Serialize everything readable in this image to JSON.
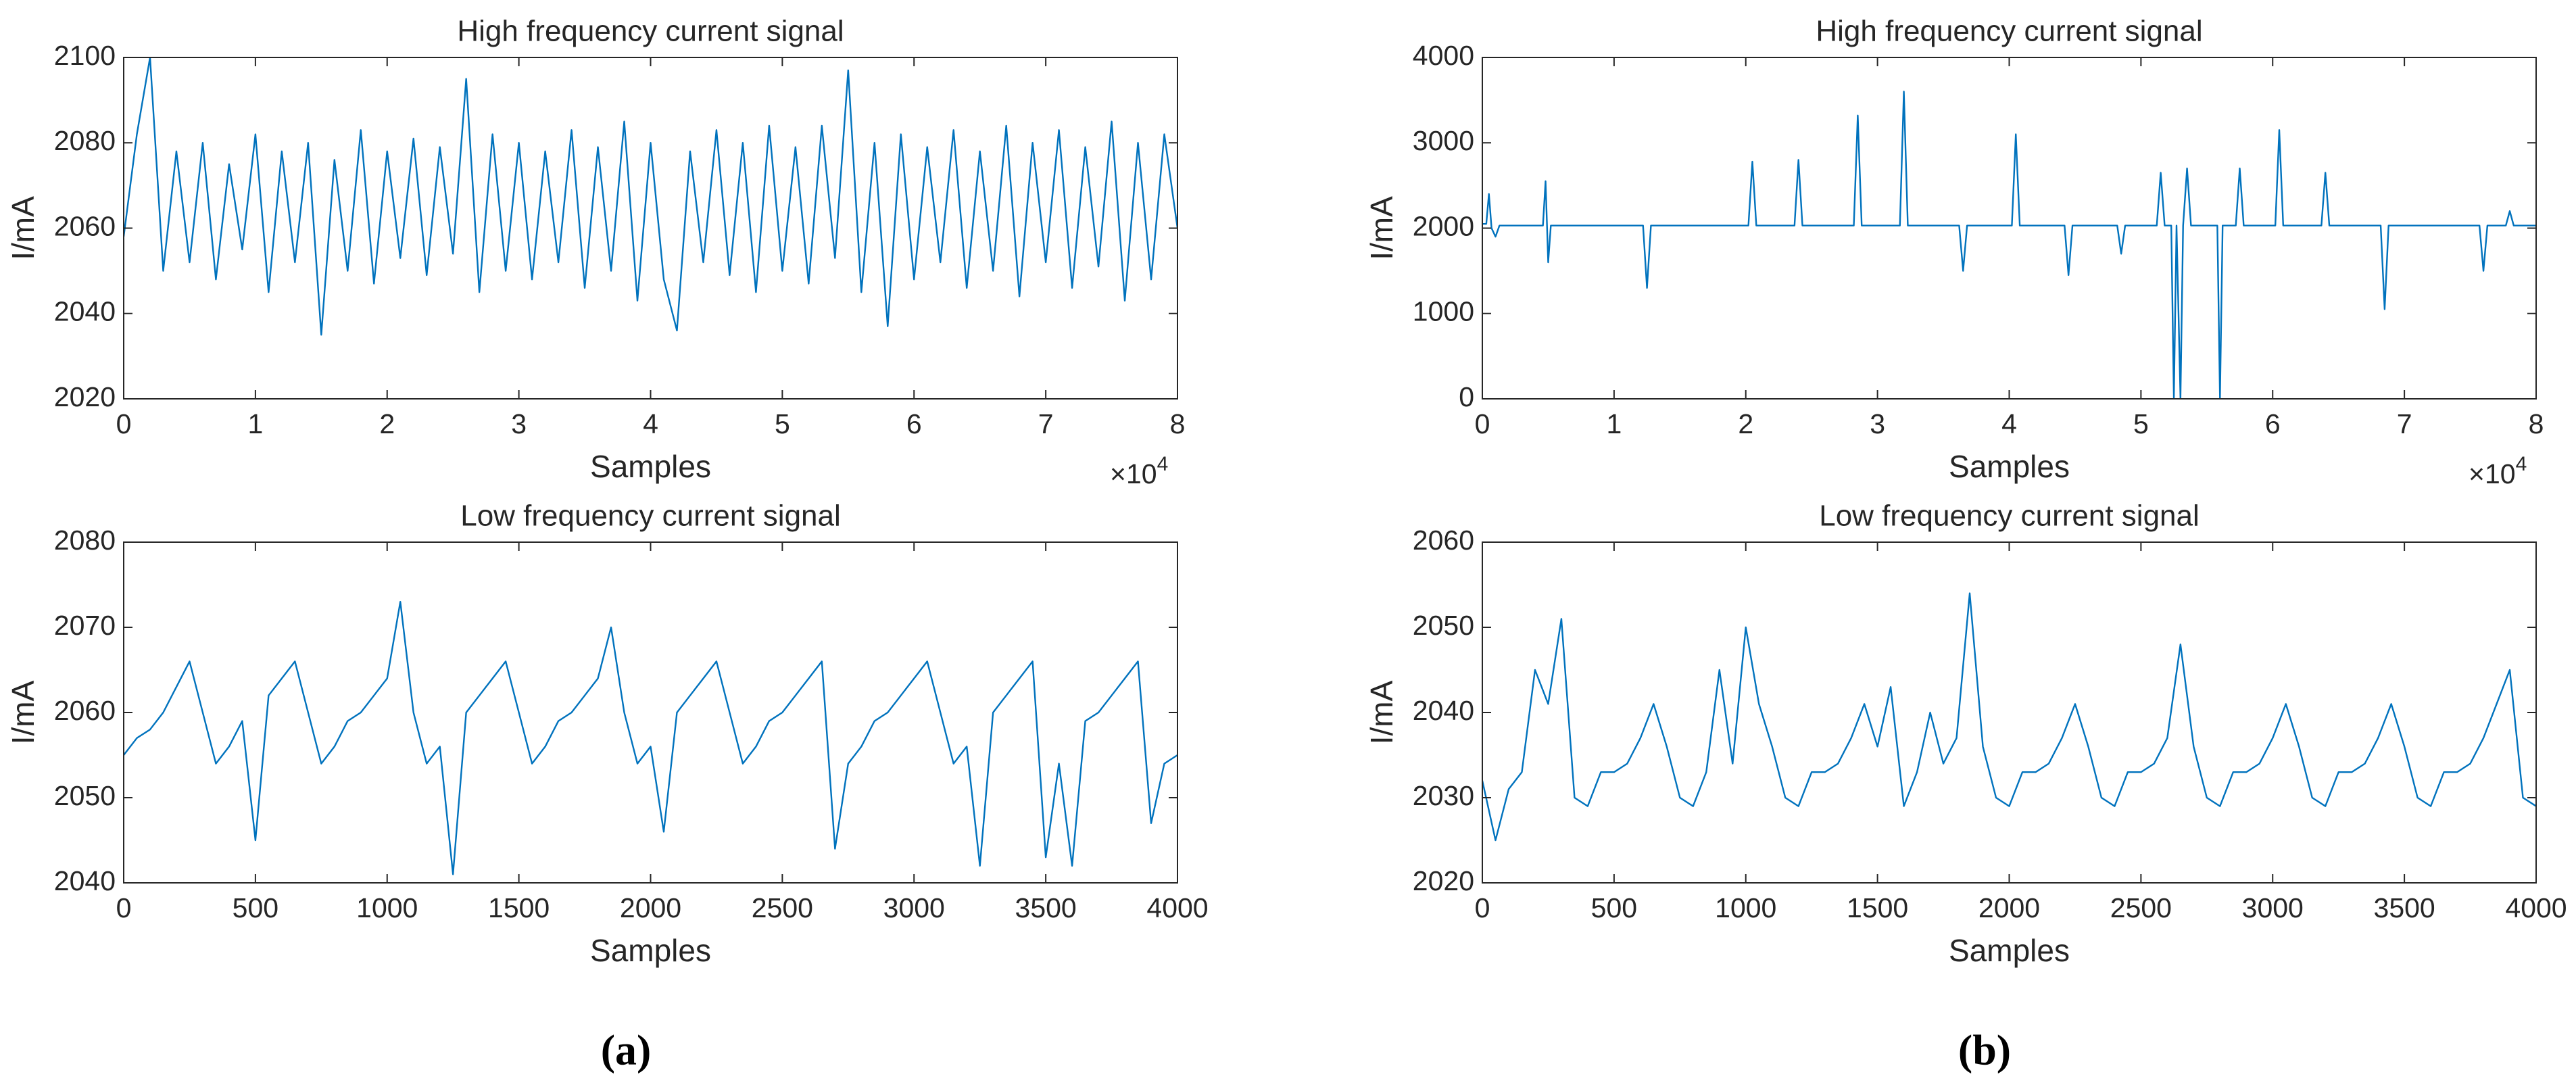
{
  "panels": [
    "(a)",
    "(b)"
  ],
  "chart_data": [
    {
      "type": "line",
      "title": "High frequency current signal",
      "x_label": "Samples",
      "y_label": "I/mA",
      "x_exponent_label": "×10",
      "x_exponent": "4",
      "xlim": [
        0,
        80000
      ],
      "ylim": [
        2020,
        2100
      ],
      "xticks": [
        0,
        {
          "value": 10000,
          "label": "1"
        },
        {
          "value": 20000,
          "label": "2"
        },
        {
          "value": 30000,
          "label": "3"
        },
        {
          "value": 40000,
          "label": "4"
        },
        {
          "value": 50000,
          "label": "5"
        },
        {
          "value": 60000,
          "label": "6"
        },
        {
          "value": 70000,
          "label": "7"
        },
        {
          "value": 80000,
          "label": "8"
        }
      ],
      "yticks": [
        2020,
        2040,
        2060,
        2080,
        2100
      ],
      "x": [
        0,
        1000,
        2000,
        3000,
        4000,
        5000,
        6000,
        7000,
        8000,
        9000,
        10000,
        11000,
        12000,
        13000,
        14000,
        15000,
        16000,
        17000,
        18000,
        19000,
        20000,
        21000,
        22000,
        23000,
        24000,
        25000,
        26000,
        27000,
        28000,
        29000,
        30000,
        31000,
        32000,
        33000,
        34000,
        35000,
        36000,
        37000,
        38000,
        39000,
        40000,
        41000,
        42000,
        43000,
        44000,
        45000,
        46000,
        47000,
        48000,
        49000,
        50000,
        51000,
        52000,
        53000,
        54000,
        55000,
        56000,
        57000,
        58000,
        59000,
        60000,
        61000,
        62000,
        63000,
        64000,
        65000,
        66000,
        67000,
        68000,
        69000,
        70000,
        71000,
        72000,
        73000,
        74000,
        75000,
        76000,
        77000,
        78000,
        79000,
        80000
      ],
      "series": [
        {
          "color": "#0072BD",
          "values": [
            2058,
            2082,
            2100,
            2050,
            2078,
            2052,
            2080,
            2048,
            2075,
            2055,
            2082,
            2045,
            2078,
            2052,
            2080,
            2035,
            2076,
            2050,
            2083,
            2047,
            2078,
            2053,
            2081,
            2049,
            2079,
            2054,
            2095,
            2045,
            2082,
            2050,
            2080,
            2048,
            2078,
            2052,
            2083,
            2046,
            2079,
            2050,
            2085,
            2043,
            2080,
            2048,
            2036,
            2078,
            2052,
            2083,
            2049,
            2080,
            2045,
            2084,
            2050,
            2079,
            2047,
            2084,
            2053,
            2097,
            2045,
            2080,
            2037,
            2082,
            2048,
            2079,
            2052,
            2083,
            2046,
            2078,
            2050,
            2084,
            2044,
            2080,
            2052,
            2083,
            2046,
            2079,
            2051,
            2085,
            2043,
            2080,
            2048,
            2082,
            2060
          ]
        }
      ]
    },
    {
      "type": "line",
      "title": "High frequency current signal",
      "x_label": "Samples",
      "y_label": "I/mA",
      "x_exponent_label": "×10",
      "x_exponent": "4",
      "xlim": [
        0,
        80000
      ],
      "ylim": [
        0,
        4000
      ],
      "xticks": [
        0,
        {
          "value": 10000,
          "label": "1"
        },
        {
          "value": 20000,
          "label": "2"
        },
        {
          "value": 30000,
          "label": "3"
        },
        {
          "value": 40000,
          "label": "4"
        },
        {
          "value": 50000,
          "label": "5"
        },
        {
          "value": 60000,
          "label": "6"
        },
        {
          "value": 70000,
          "label": "7"
        },
        {
          "value": 80000,
          "label": "8"
        }
      ],
      "yticks": [
        0,
        1000,
        2000,
        3000,
        4000
      ],
      "x": [
        0,
        300,
        500,
        700,
        1000,
        1300,
        4600,
        4800,
        5000,
        5200,
        12200,
        12500,
        12800,
        20200,
        20500,
        20800,
        23700,
        24000,
        24300,
        28200,
        28500,
        28800,
        31700,
        32000,
        32300,
        36200,
        36500,
        36800,
        40200,
        40500,
        40800,
        44200,
        44500,
        44800,
        48200,
        48500,
        48800,
        51200,
        51500,
        51800,
        52300,
        52500,
        52700,
        53000,
        53200,
        53500,
        53800,
        55800,
        56000,
        56200,
        57200,
        57500,
        57800,
        60200,
        60500,
        60800,
        63700,
        64000,
        64300,
        68200,
        68500,
        68800,
        75700,
        76000,
        76300,
        77700,
        78000,
        78300,
        80000
      ],
      "series": [
        {
          "color": "#0072BD",
          "values": [
            2050,
            2050,
            2400,
            2000,
            1900,
            2030,
            2030,
            2550,
            1600,
            2030,
            2030,
            1300,
            2030,
            2030,
            2780,
            2030,
            2030,
            2800,
            2030,
            2030,
            3320,
            2030,
            2030,
            3600,
            2030,
            2030,
            1500,
            2030,
            2030,
            3100,
            2030,
            2030,
            1450,
            2030,
            2030,
            1700,
            2030,
            2030,
            2650,
            2030,
            2030,
            0,
            2030,
            0,
            2030,
            2700,
            2030,
            2030,
            0,
            2030,
            2030,
            2700,
            2030,
            2030,
            3150,
            2030,
            2030,
            2650,
            2030,
            2030,
            1050,
            2030,
            2030,
            1500,
            2030,
            2030,
            2200,
            2030,
            2030
          ]
        }
      ]
    },
    {
      "type": "line",
      "title": "Low frequency current signal",
      "x_label": "Samples",
      "y_label": "I/mA",
      "xlim": [
        0,
        4000
      ],
      "ylim": [
        2040,
        2080
      ],
      "xticks": [
        0,
        500,
        1000,
        1500,
        2000,
        2500,
        3000,
        3500,
        4000
      ],
      "yticks": [
        2040,
        2050,
        2060,
        2070,
        2080
      ],
      "x": [
        0,
        50,
        100,
        150,
        200,
        250,
        300,
        350,
        400,
        450,
        500,
        550,
        600,
        650,
        700,
        750,
        800,
        850,
        900,
        950,
        1000,
        1050,
        1100,
        1150,
        1200,
        1250,
        1300,
        1350,
        1400,
        1450,
        1500,
        1550,
        1600,
        1650,
        1700,
        1750,
        1800,
        1850,
        1900,
        1950,
        2000,
        2050,
        2100,
        2150,
        2200,
        2250,
        2300,
        2350,
        2400,
        2450,
        2500,
        2550,
        2600,
        2650,
        2700,
        2750,
        2800,
        2850,
        2900,
        2950,
        3000,
        3050,
        3100,
        3150,
        3200,
        3250,
        3300,
        3350,
        3400,
        3450,
        3500,
        3550,
        3600,
        3650,
        3700,
        3750,
        3800,
        3850,
        3900,
        3950,
        4000
      ],
      "series": [
        {
          "color": "#0072BD",
          "values": [
            2055,
            2057,
            2058,
            2060,
            2063,
            2066,
            2060,
            2054,
            2056,
            2059,
            2045,
            2062,
            2064,
            2066,
            2060,
            2054,
            2056,
            2059,
            2060,
            2062,
            2064,
            2073,
            2060,
            2054,
            2056,
            2041,
            2060,
            2062,
            2064,
            2066,
            2060,
            2054,
            2056,
            2059,
            2060,
            2062,
            2064,
            2070,
            2060,
            2054,
            2056,
            2046,
            2060,
            2062,
            2064,
            2066,
            2060,
            2054,
            2056,
            2059,
            2060,
            2062,
            2064,
            2066,
            2044,
            2054,
            2056,
            2059,
            2060,
            2062,
            2064,
            2066,
            2060,
            2054,
            2056,
            2042,
            2060,
            2062,
            2064,
            2066,
            2043,
            2054,
            2042,
            2059,
            2060,
            2062,
            2064,
            2066,
            2047,
            2054,
            2055
          ]
        }
      ]
    },
    {
      "type": "line",
      "title": "Low frequency current signal",
      "x_label": "Samples",
      "y_label": "I/mA",
      "xlim": [
        0,
        4000
      ],
      "ylim": [
        2020,
        2060
      ],
      "xticks": [
        0,
        500,
        1000,
        1500,
        2000,
        2500,
        3000,
        3500,
        4000
      ],
      "yticks": [
        2020,
        2030,
        2040,
        2050,
        2060
      ],
      "x": [
        0,
        50,
        100,
        150,
        200,
        250,
        300,
        350,
        400,
        450,
        500,
        550,
        600,
        650,
        700,
        750,
        800,
        850,
        900,
        950,
        1000,
        1050,
        1100,
        1150,
        1200,
        1250,
        1300,
        1350,
        1400,
        1450,
        1500,
        1550,
        1600,
        1650,
        1700,
        1750,
        1800,
        1850,
        1900,
        1950,
        2000,
        2050,
        2100,
        2150,
        2200,
        2250,
        2300,
        2350,
        2400,
        2450,
        2500,
        2550,
        2600,
        2650,
        2700,
        2750,
        2800,
        2850,
        2900,
        2950,
        3000,
        3050,
        3100,
        3150,
        3200,
        3250,
        3300,
        3350,
        3400,
        3450,
        3500,
        3550,
        3600,
        3650,
        3700,
        3750,
        3800,
        3850,
        3900,
        3950,
        4000
      ],
      "series": [
        {
          "color": "#0072BD",
          "values": [
            2032,
            2025,
            2031,
            2033,
            2045,
            2041,
            2051,
            2030,
            2029,
            2033,
            2033,
            2034,
            2037,
            2041,
            2036,
            2030,
            2029,
            2033,
            2045,
            2034,
            2050,
            2041,
            2036,
            2030,
            2029,
            2033,
            2033,
            2034,
            2037,
            2041,
            2036,
            2043,
            2029,
            2033,
            2040,
            2034,
            2037,
            2054,
            2036,
            2030,
            2029,
            2033,
            2033,
            2034,
            2037,
            2041,
            2036,
            2030,
            2029,
            2033,
            2033,
            2034,
            2037,
            2048,
            2036,
            2030,
            2029,
            2033,
            2033,
            2034,
            2037,
            2041,
            2036,
            2030,
            2029,
            2033,
            2033,
            2034,
            2037,
            2041,
            2036,
            2030,
            2029,
            2033,
            2033,
            2034,
            2037,
            2041,
            2045,
            2030,
            2029
          ]
        }
      ]
    }
  ]
}
